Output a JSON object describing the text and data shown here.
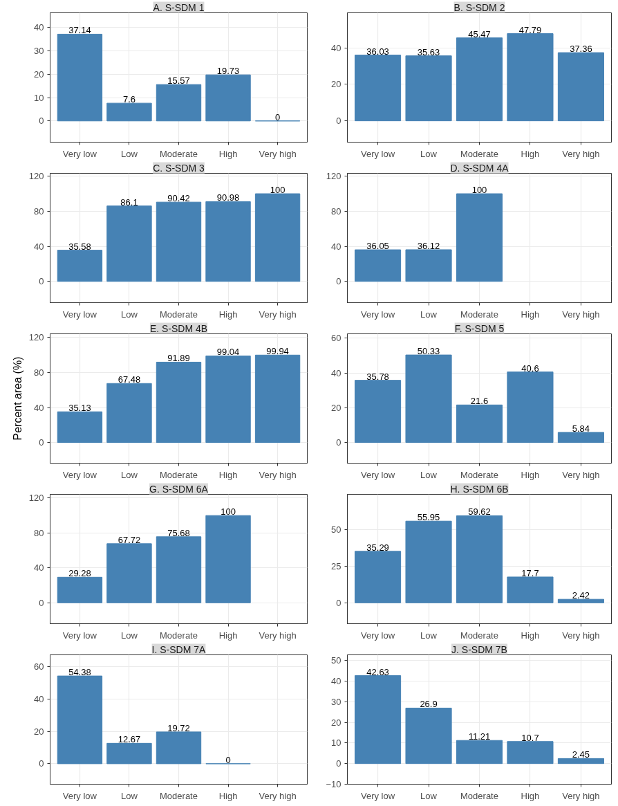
{
  "chart_data": [
    {
      "type": "bar",
      "title": "A. S-SDM 1",
      "categories": [
        "Very low",
        "Low",
        "Moderate",
        "High",
        "Very high"
      ],
      "values": [
        37.14,
        7.6,
        15.57,
        19.73,
        0
      ],
      "color": "#4682b4",
      "ylim": [
        -9.1,
        46.3
      ],
      "yticks": [
        0,
        10,
        20,
        30,
        40
      ],
      "grid": true,
      "data_labels": true
    },
    {
      "type": "bar",
      "title": "B. S-SDM 2",
      "categories": [
        "Very low",
        "Low",
        "Moderate",
        "High",
        "Very high"
      ],
      "values": [
        36.03,
        35.63,
        45.47,
        47.79,
        37.36
      ],
      "color": "#4682b4",
      "ylim": [
        -11.7,
        59.2
      ],
      "yticks": [
        0,
        20,
        40
      ],
      "grid": true,
      "data_labels": true
    },
    {
      "type": "bar",
      "title": "C. S-SDM 3",
      "categories": [
        "Very low",
        "Low",
        "Moderate",
        "High",
        "Very high"
      ],
      "values": [
        35.58,
        86.1,
        90.42,
        90.98,
        100
      ],
      "color": "#4682b4",
      "ylim": [
        -24.3,
        123.3
      ],
      "yticks": [
        0,
        40,
        80,
        120
      ],
      "grid": true,
      "data_labels": true
    },
    {
      "type": "bar",
      "title": "D. S-SDM 4A",
      "categories": [
        "Very low",
        "Low",
        "Moderate",
        "High",
        "Very high"
      ],
      "values": [
        36.05,
        36.12,
        100,
        null,
        null
      ],
      "color": "#4682b4",
      "ylim": [
        -24.3,
        123.3
      ],
      "yticks": [
        0,
        40,
        80,
        120
      ],
      "grid": true,
      "data_labels": true
    },
    {
      "type": "bar",
      "title": "E. S-SDM 4B",
      "categories": [
        "Very low",
        "Low",
        "Moderate",
        "High",
        "Very high"
      ],
      "values": [
        35.13,
        67.48,
        91.89,
        99.04,
        99.94
      ],
      "color": "#4682b4",
      "ylim": [
        -23.7,
        124.3
      ],
      "yticks": [
        0,
        40,
        80,
        120
      ],
      "grid": true,
      "data_labels": true,
      "ylabel": "Percent area (%)"
    },
    {
      "type": "bar",
      "title": "F. S-SDM 5",
      "categories": [
        "Very low",
        "Low",
        "Moderate",
        "High",
        "Very high"
      ],
      "values": [
        35.78,
        50.33,
        21.6,
        40.6,
        5.84
      ],
      "color": "#4682b4",
      "ylim": [
        -11.9,
        62.5
      ],
      "yticks": [
        0,
        20,
        40,
        60
      ],
      "grid": true,
      "data_labels": true
    },
    {
      "type": "bar",
      "title": "G. S-SDM 6A",
      "categories": [
        "Very low",
        "Low",
        "Moderate",
        "High",
        "Very high"
      ],
      "values": [
        29.28,
        67.72,
        75.68,
        100,
        null
      ],
      "color": "#4682b4",
      "ylim": [
        -24,
        124.3
      ],
      "yticks": [
        0,
        40,
        80,
        120
      ],
      "grid": true,
      "data_labels": true
    },
    {
      "type": "bar",
      "title": "H. S-SDM 6B",
      "categories": [
        "Very low",
        "Low",
        "Moderate",
        "High",
        "Very high"
      ],
      "values": [
        35.29,
        55.95,
        59.62,
        17.7,
        2.42
      ],
      "color": "#4682b4",
      "ylim": [
        -14.3,
        74.3
      ],
      "yticks": [
        0,
        25,
        50
      ],
      "grid": true,
      "data_labels": true
    },
    {
      "type": "bar",
      "title": "I. S-SDM 7A",
      "categories": [
        "Very low",
        "Low",
        "Moderate",
        "High",
        "Very high"
      ],
      "values": [
        54.38,
        12.67,
        19.72,
        0,
        null
      ],
      "color": "#4682b4",
      "ylim": [
        -12.7,
        67.5
      ],
      "yticks": [
        0,
        20,
        40,
        60
      ],
      "grid": true,
      "data_labels": true
    },
    {
      "type": "bar",
      "title": "J. S-SDM 7B",
      "categories": [
        "Very low",
        "Low",
        "Moderate",
        "High",
        "Very high"
      ],
      "values": [
        42.63,
        26.9,
        11.21,
        10.7,
        2.45
      ],
      "color": "#4682b4",
      "ylim": [
        -10,
        52.7
      ],
      "yticks": [
        -10,
        0,
        10,
        20,
        30,
        40,
        50
      ],
      "grid": true,
      "data_labels": true
    }
  ]
}
